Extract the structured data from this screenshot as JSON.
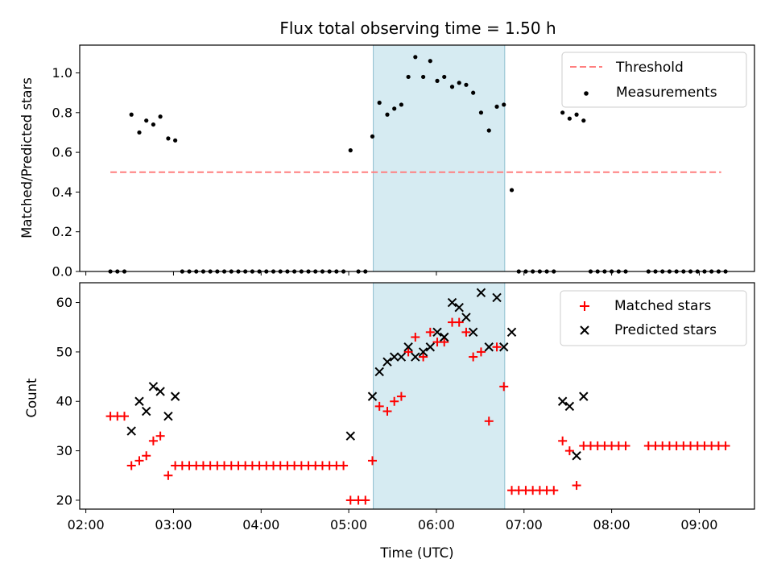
{
  "chart_data": {
    "type": "scatter",
    "title": "Flux total observing time = 1.50 h",
    "xlabel": "Time (UTC)",
    "x_tick_labels": [
      "02:00",
      "03:00",
      "04:00",
      "05:00",
      "06:00",
      "07:00",
      "08:00",
      "09:00"
    ],
    "x_tick_hours": [
      2,
      3,
      4,
      5,
      6,
      7,
      8,
      9
    ],
    "xlim_hours": [
      1.93,
      9.63
    ],
    "highlight_band_hours": [
      5.28,
      6.78
    ],
    "highlight_color": "#add8e6",
    "panels": [
      {
        "id": "ratio",
        "ylabel": "Matched/Predicted stars",
        "ylim": [
          0,
          1.14
        ],
        "y_ticks": [
          0.0,
          0.2,
          0.4,
          0.6,
          0.8,
          1.0
        ],
        "y_tick_labels": [
          "0.0",
          "0.2",
          "0.4",
          "0.6",
          "0.8",
          "1.0"
        ],
        "legend_position": "upper right",
        "threshold": {
          "name": "Threshold",
          "y": 0.5,
          "x_range": [
            2.28,
            9.25
          ],
          "color": "#ff7f7f"
        },
        "series": [
          {
            "name": "Measurements",
            "marker": "dot",
            "color": "#000000",
            "x": [
              2.28,
              2.36,
              2.44,
              2.52,
              2.61,
              2.69,
              2.77,
              2.85,
              2.94,
              3.02,
              3.1,
              3.18,
              3.26,
              3.34,
              3.42,
              3.5,
              3.58,
              3.66,
              3.74,
              3.82,
              3.9,
              3.98,
              4.06,
              4.14,
              4.22,
              4.3,
              4.38,
              4.46,
              4.54,
              4.62,
              4.7,
              4.78,
              4.86,
              4.94,
              5.02,
              5.11,
              5.19,
              5.27,
              5.35,
              5.44,
              5.52,
              5.6,
              5.68,
              5.76,
              5.85,
              5.93,
              6.01,
              6.09,
              6.18,
              6.26,
              6.34,
              6.42,
              6.51,
              6.6,
              6.69,
              6.77,
              6.86,
              6.94,
              7.02,
              7.1,
              7.18,
              7.26,
              7.34,
              7.44,
              7.52,
              7.6,
              7.68,
              7.76,
              7.84,
              7.92,
              8.0,
              8.08,
              8.16,
              8.42,
              8.5,
              8.58,
              8.66,
              8.74,
              8.82,
              8.9,
              8.98,
              9.06,
              9.14,
              9.22,
              9.3
            ],
            "y": [
              0,
              0,
              0,
              0.79,
              0.7,
              0.76,
              0.74,
              0.78,
              0.67,
              0.66,
              0,
              0,
              0,
              0,
              0,
              0,
              0,
              0,
              0,
              0,
              0,
              0,
              0,
              0,
              0,
              0,
              0,
              0,
              0,
              0,
              0,
              0,
              0,
              0,
              0.61,
              0,
              0,
              0.68,
              0.85,
              0.79,
              0.82,
              0.84,
              0.98,
              1.08,
              0.98,
              1.06,
              0.96,
              0.98,
              0.93,
              0.95,
              0.94,
              0.9,
              0.8,
              0.71,
              0.83,
              0.84,
              0.41,
              0,
              0,
              0,
              0,
              0,
              0,
              0.8,
              0.77,
              0.79,
              0.76,
              0,
              0,
              0,
              0,
              0,
              0,
              0,
              0,
              0,
              0,
              0,
              0,
              0,
              0,
              0,
              0,
              0,
              0
            ]
          }
        ]
      },
      {
        "id": "count",
        "ylabel": "Count",
        "ylim": [
          18.2,
          64
        ],
        "y_ticks": [
          20,
          30,
          40,
          50,
          60
        ],
        "y_tick_labels": [
          "20",
          "30",
          "40",
          "50",
          "60"
        ],
        "legend_position": "upper right",
        "series": [
          {
            "name": "Matched stars",
            "marker": "plus",
            "color": "#ff0000",
            "x": [
              2.28,
              2.36,
              2.44,
              2.52,
              2.61,
              2.69,
              2.77,
              2.85,
              2.94,
              3.02,
              3.1,
              3.18,
              3.26,
              3.34,
              3.42,
              3.5,
              3.58,
              3.66,
              3.74,
              3.82,
              3.9,
              3.98,
              4.06,
              4.14,
              4.22,
              4.3,
              4.38,
              4.46,
              4.54,
              4.62,
              4.7,
              4.78,
              4.86,
              4.94,
              5.02,
              5.11,
              5.19,
              5.27,
              5.35,
              5.44,
              5.52,
              5.6,
              5.68,
              5.76,
              5.85,
              5.93,
              6.01,
              6.09,
              6.18,
              6.26,
              6.34,
              6.42,
              6.51,
              6.6,
              6.69,
              6.77,
              6.86,
              6.94,
              7.02,
              7.1,
              7.18,
              7.26,
              7.34,
              7.44,
              7.52,
              7.6,
              7.68,
              7.76,
              7.84,
              7.92,
              8.0,
              8.08,
              8.16,
              8.42,
              8.5,
              8.58,
              8.66,
              8.74,
              8.82,
              8.9,
              8.98,
              9.06,
              9.14,
              9.22,
              9.3
            ],
            "y": [
              37,
              37,
              37,
              27,
              28,
              29,
              32,
              33,
              25,
              27,
              27,
              27,
              27,
              27,
              27,
              27,
              27,
              27,
              27,
              27,
              27,
              27,
              27,
              27,
              27,
              27,
              27,
              27,
              27,
              27,
              27,
              27,
              27,
              27,
              20,
              20,
              20,
              28,
              39,
              38,
              40,
              41,
              50,
              53,
              49,
              54,
              52,
              52,
              56,
              56,
              54,
              49,
              50,
              36,
              51,
              43,
              22,
              22,
              22,
              22,
              22,
              22,
              22,
              32,
              30,
              23,
              31,
              31,
              31,
              31,
              31,
              31,
              31,
              31,
              31,
              31,
              31,
              31,
              31,
              31,
              31,
              31,
              31,
              31,
              31
            ]
          },
          {
            "name": "Predicted stars",
            "marker": "x",
            "color": "#000000",
            "x": [
              2.52,
              2.61,
              2.69,
              2.77,
              2.85,
              2.94,
              3.02,
              5.02,
              5.27,
              5.35,
              5.44,
              5.52,
              5.6,
              5.68,
              5.76,
              5.85,
              5.93,
              6.01,
              6.09,
              6.18,
              6.26,
              6.34,
              6.42,
              6.51,
              6.6,
              6.69,
              6.77,
              6.86,
              7.44,
              7.52,
              7.6,
              7.68
            ],
            "y": [
              34,
              40,
              38,
              43,
              42,
              37,
              41,
              33,
              41,
              46,
              48,
              49,
              49,
              51,
              49,
              50,
              51,
              54,
              53,
              60,
              59,
              57,
              54,
              62,
              51,
              61,
              51,
              54,
              40,
              39,
              29,
              41
            ]
          }
        ]
      }
    ]
  }
}
